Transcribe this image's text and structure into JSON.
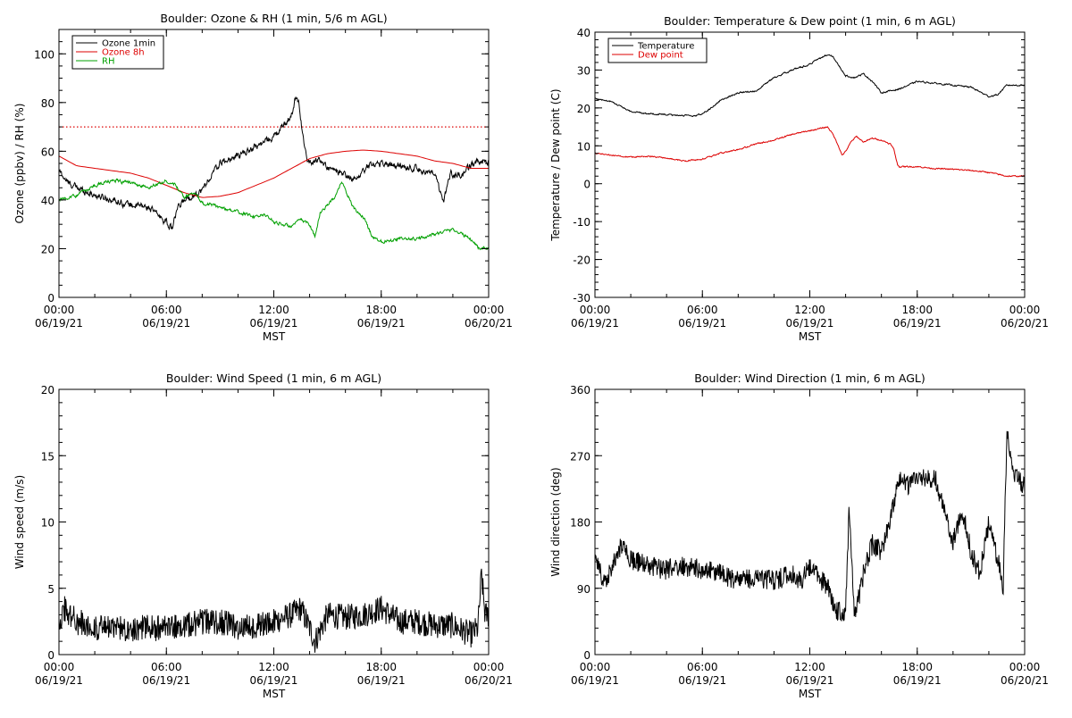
{
  "chart_data": [
    {
      "type": "line",
      "title": "Boulder: Ozone & RH (1 min, 5/6 m AGL)",
      "xlabel": "MST",
      "ylabel": "Ozone (ppbv) / RH (%)",
      "xlim_hours": [
        0,
        24
      ],
      "ylim": [
        0,
        110
      ],
      "yticks": [
        0,
        20,
        40,
        60,
        80,
        100
      ],
      "x_ticks": [
        {
          "h": 0,
          "line1": "00:00",
          "line2": "06/19/21"
        },
        {
          "h": 6,
          "line1": "06:00",
          "line2": "06/19/21"
        },
        {
          "h": 12,
          "line1": "12:00",
          "line2": "06/19/21"
        },
        {
          "h": 18,
          "line1": "18:00",
          "line2": "06/19/21"
        },
        {
          "h": 24,
          "line1": "00:00",
          "line2": "06/20/21"
        }
      ],
      "legend_position": "top-left",
      "reference_line": {
        "y": 70,
        "color": "#dd0000",
        "style": "dotted"
      },
      "series": [
        {
          "name": "Ozone 1min",
          "color": "#000000",
          "noise": 2.5,
          "x": [
            0,
            0.5,
            1,
            2,
            3,
            4,
            5,
            5.5,
            6,
            6.3,
            6.6,
            7,
            7.5,
            8,
            8.5,
            9,
            10,
            11,
            12,
            12.5,
            13,
            13.2,
            13.4,
            13.7,
            13.8,
            14,
            14.5,
            15,
            16,
            16.5,
            17,
            17.5,
            18,
            19,
            20,
            21,
            21.5,
            21.7,
            21.9,
            22,
            22.5,
            23,
            23.5,
            24
          ],
          "y": [
            52,
            47,
            45,
            42,
            40,
            38,
            37,
            34,
            31,
            28,
            36,
            40,
            42,
            44,
            50,
            55,
            58,
            62,
            66,
            70,
            75,
            82,
            80,
            62,
            58,
            55,
            57,
            53,
            50,
            48,
            52,
            55,
            55,
            54,
            53,
            50,
            38,
            48,
            52,
            50,
            50,
            54,
            56,
            56
          ]
        },
        {
          "name": "Ozone 8h",
          "color": "#dd0000",
          "noise": 0,
          "x": [
            0,
            1,
            2,
            3,
            4,
            5,
            6,
            7,
            8,
            9,
            10,
            11,
            12,
            13,
            14,
            15,
            16,
            17,
            18,
            19,
            20,
            21,
            22,
            23,
            24
          ],
          "y": [
            58,
            54,
            53,
            52,
            51,
            49,
            46,
            43,
            41,
            41.5,
            43,
            46,
            49,
            53,
            57,
            59,
            60,
            60.5,
            60,
            59,
            58,
            56,
            55,
            53,
            53
          ]
        },
        {
          "name": "RH",
          "color": "#00a000",
          "noise": 1.2,
          "x": [
            0,
            1,
            2,
            3,
            4,
            5,
            6,
            6.5,
            7,
            7.5,
            8,
            9,
            10,
            11,
            11.5,
            12,
            13,
            13.5,
            14,
            14.3,
            14.6,
            15,
            15.5,
            15.8,
            16,
            16.5,
            17,
            17.5,
            18,
            19,
            20,
            21,
            22,
            23,
            23.5,
            24
          ],
          "y": [
            40,
            42,
            46,
            48,
            47,
            45,
            48,
            46,
            41,
            43,
            39,
            37,
            35,
            33,
            34,
            31,
            29,
            32,
            30,
            25,
            35,
            38,
            42,
            48,
            44,
            36,
            33,
            25,
            23,
            24,
            24,
            26,
            28,
            24,
            20,
            20
          ]
        }
      ]
    },
    {
      "type": "line",
      "title": "Boulder: Temperature & Dew point (1 min, 6 m AGL)",
      "xlabel": "MST",
      "ylabel": "Temperature / Dew point (C)",
      "xlim_hours": [
        0,
        24
      ],
      "ylim": [
        -30,
        40
      ],
      "yticks": [
        -30,
        -20,
        -10,
        0,
        10,
        20,
        30,
        40
      ],
      "x_ticks": [
        {
          "h": 0,
          "line1": "00:00",
          "line2": "06/19/21"
        },
        {
          "h": 6,
          "line1": "06:00",
          "line2": "06/19/21"
        },
        {
          "h": 12,
          "line1": "12:00",
          "line2": "06/19/21"
        },
        {
          "h": 18,
          "line1": "18:00",
          "line2": "06/19/21"
        },
        {
          "h": 24,
          "line1": "00:00",
          "line2": "06/20/21"
        }
      ],
      "legend_position": "top-left",
      "series": [
        {
          "name": "Temperature",
          "color": "#000000",
          "noise": 0.35,
          "x": [
            0,
            1,
            2,
            3,
            4,
            5,
            5.5,
            6,
            6.5,
            7,
            8,
            9,
            10,
            11,
            12,
            12.5,
            13,
            13.3,
            13.5,
            14,
            14.5,
            15,
            15.5,
            16,
            17,
            18,
            19,
            20,
            21,
            22,
            22.5,
            23,
            24
          ],
          "y": [
            22.5,
            21.5,
            19,
            18.5,
            18.2,
            18,
            17.8,
            18.5,
            20,
            22,
            24,
            24.5,
            28,
            30,
            31.5,
            33,
            34,
            33.5,
            32,
            28.5,
            28,
            29,
            27,
            24,
            25,
            27,
            26.5,
            26,
            25.5,
            23,
            23.5,
            26,
            26
          ]
        },
        {
          "name": "Dew point",
          "color": "#dd0000",
          "noise": 0.3,
          "x": [
            0,
            1,
            2,
            3,
            4,
            5,
            6,
            7,
            8,
            9,
            10,
            11,
            12,
            12.5,
            13,
            13.3,
            13.6,
            13.8,
            14,
            14.3,
            14.6,
            15,
            15.5,
            16,
            16.5,
            16.7,
            16.9,
            17,
            17.5,
            18,
            19,
            20,
            21,
            22,
            23,
            24
          ],
          "y": [
            8,
            7.5,
            7,
            7.2,
            6.8,
            6,
            6.5,
            8,
            9,
            10.5,
            11.5,
            13,
            14,
            14.5,
            15,
            13,
            10,
            7.5,
            8.5,
            11,
            12.5,
            11,
            12,
            11.5,
            10.5,
            9,
            5,
            4.5,
            4.5,
            4.5,
            4,
            3.8,
            3.5,
            3,
            2,
            2
          ]
        }
      ]
    },
    {
      "type": "line",
      "title": "Boulder: Wind Speed (1 min, 6 m AGL)",
      "xlabel": "MST",
      "ylabel": "Wind speed (m/s)",
      "xlim_hours": [
        0,
        24
      ],
      "ylim": [
        0,
        20
      ],
      "yticks": [
        0,
        5,
        10,
        15,
        20
      ],
      "x_ticks": [
        {
          "h": 0,
          "line1": "00:00",
          "line2": "06/19/21"
        },
        {
          "h": 6,
          "line1": "06:00",
          "line2": "06/19/21"
        },
        {
          "h": 12,
          "line1": "12:00",
          "line2": "06/19/21"
        },
        {
          "h": 18,
          "line1": "18:00",
          "line2": "06/19/21"
        },
        {
          "h": 24,
          "line1": "00:00",
          "line2": "06/20/21"
        }
      ],
      "series": [
        {
          "name": "",
          "color": "#000000",
          "noise": 1.0,
          "x": [
            0,
            0.3,
            1,
            2,
            3,
            4,
            5,
            6,
            7,
            8,
            9,
            10,
            11,
            12,
            13,
            13.5,
            14,
            14.3,
            15,
            16,
            17,
            18,
            19,
            20,
            21,
            22,
            23,
            23.4,
            23.6,
            23.8,
            24
          ],
          "y": [
            2.5,
            3.5,
            2.5,
            2,
            2,
            2,
            2,
            2,
            2.2,
            2.5,
            2.5,
            2,
            2.2,
            2.5,
            3,
            3.5,
            2,
            1,
            3,
            2.8,
            3,
            3.5,
            2.5,
            2.5,
            2.2,
            2.2,
            1.5,
            2,
            6,
            3,
            3
          ]
        }
      ]
    },
    {
      "type": "line",
      "title": "Boulder: Wind Direction (1 min, 6 m AGL)",
      "xlabel": "MST",
      "ylabel": "Wind direction (deg)",
      "xlim_hours": [
        0,
        24
      ],
      "ylim": [
        0,
        360
      ],
      "yticks": [
        0,
        90,
        180,
        270,
        360
      ],
      "x_ticks": [
        {
          "h": 0,
          "line1": "00:00",
          "line2": "06/19/21"
        },
        {
          "h": 6,
          "line1": "06:00",
          "line2": "06/19/21"
        },
        {
          "h": 12,
          "line1": "12:00",
          "line2": "06/19/21"
        },
        {
          "h": 18,
          "line1": "18:00",
          "line2": "06/19/21"
        },
        {
          "h": 24,
          "line1": "00:00",
          "line2": "06/20/21"
        }
      ],
      "series": [
        {
          "name": "",
          "color": "#000000",
          "noise": 14,
          "x": [
            0,
            0.5,
            1,
            1.5,
            2,
            3,
            4,
            5,
            6,
            7,
            8,
            9,
            10,
            11,
            11.5,
            12,
            13,
            13.5,
            14,
            14.2,
            14.5,
            15,
            15.5,
            16,
            16.5,
            17,
            17.5,
            18,
            19,
            20,
            20.5,
            21,
            21.5,
            22,
            22.5,
            22.8,
            23,
            23.5,
            24
          ],
          "y": [
            130,
            100,
            120,
            150,
            130,
            120,
            115,
            120,
            115,
            110,
            100,
            105,
            100,
            110,
            100,
            120,
            90,
            60,
            60,
            200,
            50,
            110,
            150,
            140,
            180,
            240,
            230,
            240,
            240,
            150,
            200,
            140,
            110,
            180,
            130,
            90,
            300,
            240,
            230
          ]
        }
      ]
    }
  ]
}
